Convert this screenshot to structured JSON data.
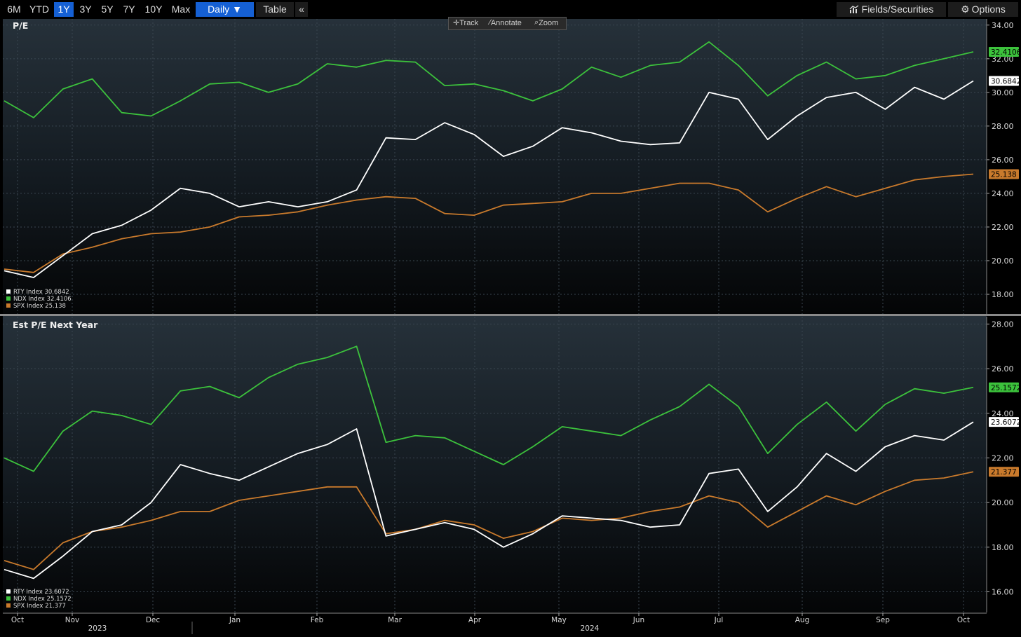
{
  "toolbar": {
    "ranges": [
      "6M",
      "YTD",
      "1Y",
      "3Y",
      "5Y",
      "7Y",
      "10Y",
      "Max"
    ],
    "active_range": "1Y",
    "frequency": "Daily ▼",
    "table_label": "Table",
    "collapse_label": "«",
    "fields_label": "Fields/Securities",
    "options_label": "Options"
  },
  "mini_tools": {
    "track": "Track",
    "annotate": "Annotate",
    "zoom": "Zoom"
  },
  "colors": {
    "RTY": "#ffffff",
    "NDX": "#3cc23c",
    "SPX": "#c97a2c"
  },
  "x_axis": {
    "month_labels": [
      "Oct",
      "Nov",
      "Dec",
      "Jan",
      "Feb",
      "Mar",
      "Apr",
      "May",
      "Jun",
      "Jul",
      "Aug",
      "Sep",
      "Oct"
    ],
    "year_labels": [
      "2023",
      "2024"
    ]
  },
  "chart_data": [
    {
      "type": "line",
      "title": "P/E",
      "ylim": [
        17,
        34.2
      ],
      "yticks": [
        "18.00",
        "20.00",
        "22.00",
        "24.00",
        "26.00",
        "28.00",
        "30.00",
        "32.00",
        "34.00"
      ],
      "grid": true,
      "legend_placement": "bottom-left",
      "series": [
        {
          "name": "RTY Index",
          "last": "30.6842",
          "values": [
            19.4,
            19.0,
            20.3,
            21.6,
            22.1,
            23.0,
            24.3,
            24.0,
            23.2,
            23.5,
            23.2,
            23.5,
            24.2,
            27.3,
            27.2,
            28.2,
            27.5,
            26.2,
            26.8,
            27.9,
            27.6,
            27.1,
            26.9,
            27.0,
            30.0,
            29.6,
            27.2,
            28.6,
            29.7,
            30.0,
            29.0,
            30.3,
            29.6,
            30.68
          ]
        },
        {
          "name": "NDX Index",
          "last": "32.4106",
          "values": [
            29.5,
            28.5,
            30.2,
            30.8,
            28.8,
            28.6,
            29.5,
            30.5,
            30.6,
            30.0,
            30.5,
            31.7,
            31.5,
            31.9,
            31.8,
            30.4,
            30.5,
            30.1,
            29.5,
            30.2,
            31.5,
            30.9,
            31.6,
            31.8,
            33.0,
            31.6,
            29.8,
            31.0,
            31.8,
            30.8,
            31.0,
            31.6,
            32.0,
            32.41
          ]
        },
        {
          "name": "SPX Index",
          "last": "25.138",
          "values": [
            19.5,
            19.3,
            20.4,
            20.8,
            21.3,
            21.6,
            21.7,
            22.0,
            22.6,
            22.7,
            22.9,
            23.3,
            23.6,
            23.8,
            23.7,
            22.8,
            22.7,
            23.3,
            23.4,
            23.5,
            24.0,
            24.0,
            24.3,
            24.6,
            24.6,
            24.2,
            22.9,
            23.7,
            24.4,
            23.8,
            24.3,
            24.8,
            25.0,
            25.14
          ]
        }
      ]
    },
    {
      "type": "line",
      "title": "Est P/E Next Year",
      "ylim": [
        15.2,
        28.2
      ],
      "yticks": [
        "16.00",
        "18.00",
        "20.00",
        "22.00",
        "24.00",
        "26.00",
        "28.00"
      ],
      "grid": true,
      "legend_placement": "bottom-left",
      "series": [
        {
          "name": "RTY Index",
          "last": "23.6072",
          "values": [
            17.0,
            16.6,
            17.6,
            18.7,
            19.0,
            20.0,
            21.7,
            21.3,
            21.0,
            21.6,
            22.2,
            22.6,
            23.3,
            18.5,
            18.8,
            19.1,
            18.8,
            18.0,
            18.6,
            19.4,
            19.3,
            19.2,
            18.9,
            19.0,
            21.3,
            21.5,
            19.6,
            20.7,
            22.2,
            21.4,
            22.5,
            23.0,
            22.8,
            23.61
          ]
        },
        {
          "name": "NDX Index",
          "last": "25.1572",
          "values": [
            22.0,
            21.4,
            23.2,
            24.1,
            23.9,
            23.5,
            25.0,
            25.2,
            24.7,
            25.6,
            26.2,
            26.5,
            27.0,
            22.7,
            23.0,
            22.9,
            22.3,
            21.7,
            22.5,
            23.4,
            23.2,
            23.0,
            23.7,
            24.3,
            25.3,
            24.3,
            22.2,
            23.5,
            24.5,
            23.2,
            24.4,
            25.1,
            24.9,
            25.16
          ]
        },
        {
          "name": "SPX Index",
          "last": "21.377",
          "values": [
            17.4,
            17.0,
            18.2,
            18.7,
            18.9,
            19.2,
            19.6,
            19.6,
            20.1,
            20.3,
            20.5,
            20.7,
            20.7,
            18.6,
            18.8,
            19.2,
            19.0,
            18.4,
            18.7,
            19.3,
            19.2,
            19.3,
            19.6,
            19.8,
            20.3,
            20.0,
            18.9,
            19.6,
            20.3,
            19.9,
            20.5,
            21.0,
            21.1,
            21.38
          ]
        }
      ]
    }
  ]
}
